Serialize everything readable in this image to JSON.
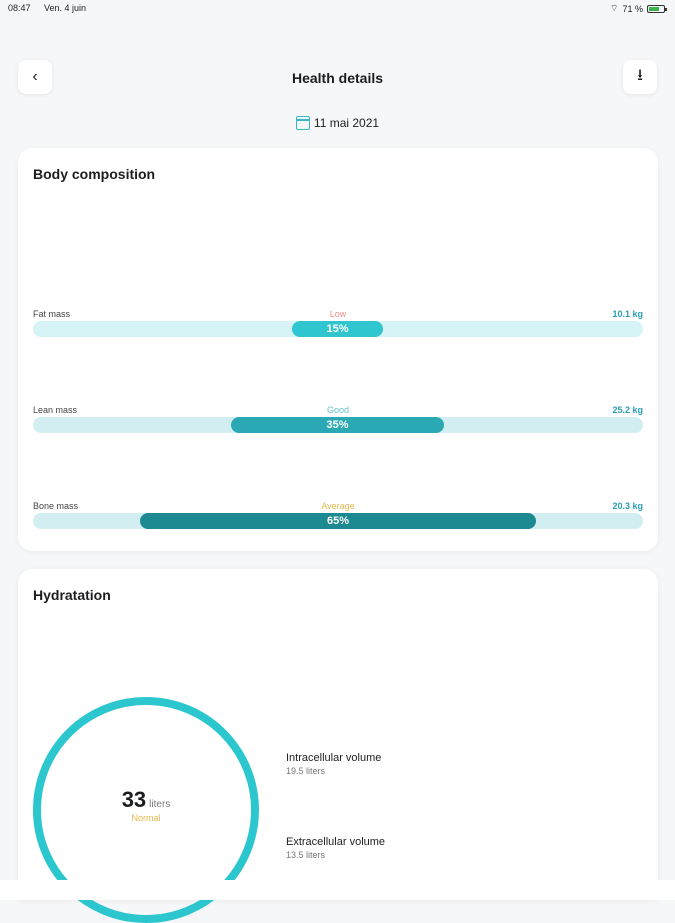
{
  "status_bar": {
    "time": "08:47",
    "date": "Ven. 4 juin",
    "battery": "71 %"
  },
  "header": {
    "title": "Health details",
    "date": "11 mai 2021"
  },
  "body_composition": {
    "title": "Body composition",
    "metrics": [
      {
        "label": "Fat mass",
        "status": "Low",
        "value": "10.1 kg",
        "percent": "15%",
        "status_color": "#f08a86",
        "bar_color": "#30c6cf",
        "track_color": "#d6f3f6"
      },
      {
        "label": "Lean mass",
        "status": "Good",
        "value": "25.2 kg",
        "percent": "35%",
        "status_color": "#63c4cb",
        "bar_color": "#2aa9b4",
        "track_color": "#d3eef1"
      },
      {
        "label": "Bone mass",
        "status": "Average",
        "value": "20.3 kg",
        "percent": "65%",
        "status_color": "#e6b84e",
        "bar_color": "#1d8990",
        "track_color": "#d3eef1"
      }
    ]
  },
  "hydration": {
    "title": "Hydratation",
    "value": "33",
    "unit": "liters",
    "status": "Normal",
    "intracellular": {
      "label": "Intracellular volume",
      "value": "19.5 liters"
    },
    "extracellular": {
      "label": "Extracellular volume",
      "value": "13.5 liters"
    }
  }
}
